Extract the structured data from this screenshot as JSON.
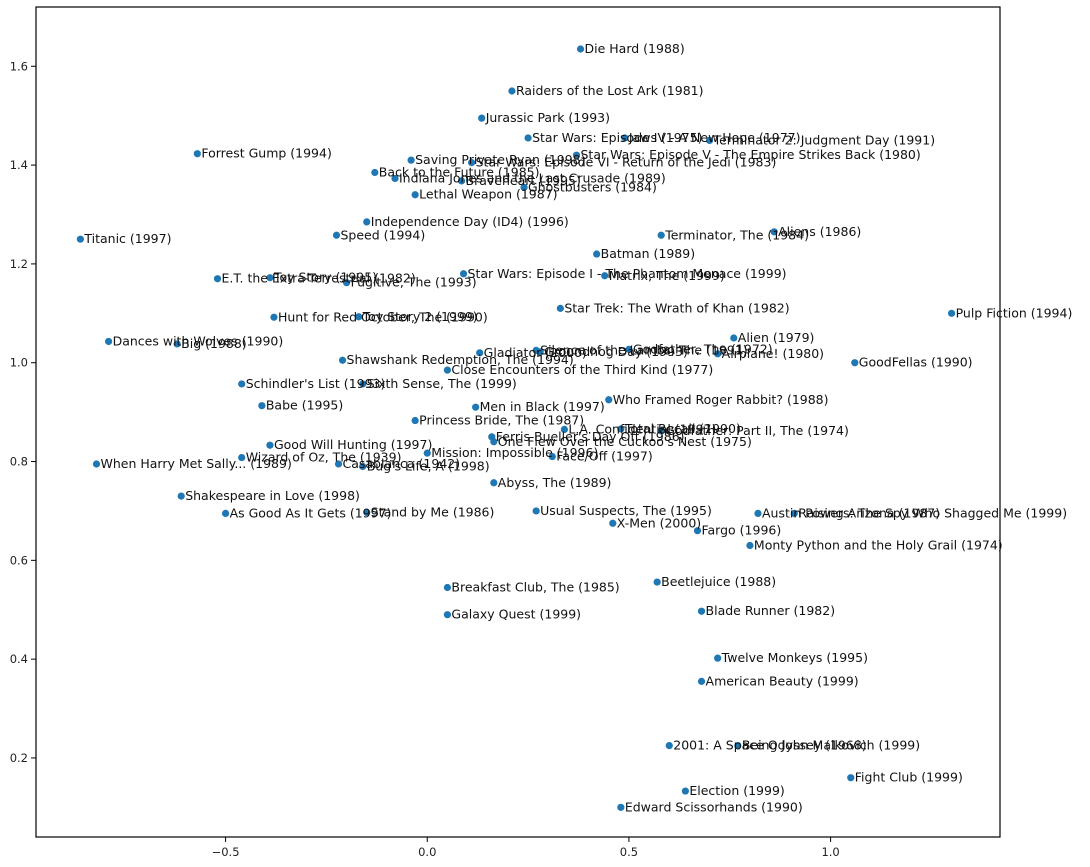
{
  "chart_data": {
    "type": "scatter",
    "title": "",
    "xlabel": "",
    "ylabel": "",
    "xlim": [
      -0.97,
      1.42
    ],
    "ylim": [
      0.04,
      1.72
    ],
    "xticks": [
      -0.5,
      0.0,
      0.5,
      1.0
    ],
    "xtick_labels": [
      "−0.5",
      "0.0",
      "0.5",
      "1.0"
    ],
    "yticks": [
      0.2,
      0.4,
      0.6,
      0.8,
      1.0,
      1.2,
      1.4,
      1.6
    ],
    "ytick_labels": [
      "0.2",
      "0.4",
      "0.6",
      "0.8",
      "1.0",
      "1.2",
      "1.4",
      "1.6"
    ],
    "grid": false,
    "marker_color": "#1f77b4",
    "points": [
      {
        "label": "Die Hard (1988)",
        "x": 0.38,
        "y": 1.635
      },
      {
        "label": "Raiders of the Lost Ark (1981)",
        "x": 0.21,
        "y": 1.55
      },
      {
        "label": "Jurassic Park (1993)",
        "x": 0.135,
        "y": 1.495
      },
      {
        "label": "Star Wars: Episode IV - A New Hope (1977)",
        "x": 0.25,
        "y": 1.455
      },
      {
        "label": "Jaws (1975)",
        "x": 0.49,
        "y": 1.455
      },
      {
        "label": "Terminator 2: Judgment Day (1991)",
        "x": 0.7,
        "y": 1.45
      },
      {
        "label": "Star Wars: Episode V - The Empire Strikes Back (1980)",
        "x": 0.37,
        "y": 1.42
      },
      {
        "label": "Forrest Gump (1994)",
        "x": -0.57,
        "y": 1.423
      },
      {
        "label": "Saving Private Ryan (1998)",
        "x": -0.04,
        "y": 1.41
      },
      {
        "label": "Star Wars: Episode VI - Return of the Jedi (1983)",
        "x": 0.11,
        "y": 1.405
      },
      {
        "label": "Back to the Future (1985)",
        "x": -0.13,
        "y": 1.385
      },
      {
        "label": "Indiana Jones and the Last Crusade (1989)",
        "x": -0.08,
        "y": 1.373
      },
      {
        "label": "Braveheart (1995)",
        "x": 0.085,
        "y": 1.368
      },
      {
        "label": "Ghostbusters (1984)",
        "x": 0.24,
        "y": 1.355
      },
      {
        "label": "Lethal Weapon (1987)",
        "x": -0.03,
        "y": 1.34
      },
      {
        "label": "Independence Day (ID4) (1996)",
        "x": -0.15,
        "y": 1.285
      },
      {
        "label": "Speed (1994)",
        "x": -0.225,
        "y": 1.258
      },
      {
        "label": "Titanic (1997)",
        "x": -0.86,
        "y": 1.25
      },
      {
        "label": "Terminator, The (1984)",
        "x": 0.58,
        "y": 1.258
      },
      {
        "label": "Aliens (1986)",
        "x": 0.86,
        "y": 1.265
      },
      {
        "label": "Batman (1989)",
        "x": 0.42,
        "y": 1.22
      },
      {
        "label": "E.T. the Extra-Terrestrial (1982)",
        "x": -0.52,
        "y": 1.17
      },
      {
        "label": "Fugitive, The (1993)",
        "x": -0.2,
        "y": 1.162
      },
      {
        "label": "Toy Story (1995)",
        "x": -0.39,
        "y": 1.172
      },
      {
        "label": "Star Wars: Episode I - The Phantom Menace (1999)",
        "x": 0.09,
        "y": 1.18
      },
      {
        "label": "Matrix, The (1999)",
        "x": 0.44,
        "y": 1.176
      },
      {
        "label": "Star Trek: The Wrath of Khan (1982)",
        "x": 0.33,
        "y": 1.11
      },
      {
        "label": "Hunt for Red October, The (1990)",
        "x": -0.38,
        "y": 1.092
      },
      {
        "label": "Toy Story 2 (1999)",
        "x": -0.17,
        "y": 1.093
      },
      {
        "label": "Pulp Fiction (1994)",
        "x": 1.3,
        "y": 1.1
      },
      {
        "label": "Alien (1979)",
        "x": 0.76,
        "y": 1.05
      },
      {
        "label": "Dances with Wolves (1990)",
        "x": -0.79,
        "y": 1.043
      },
      {
        "label": "Big (1988)",
        "x": -0.62,
        "y": 1.038
      },
      {
        "label": "Gladiator (2000)",
        "x": 0.13,
        "y": 1.02
      },
      {
        "label": "Silence of the Lambs, The (1991)",
        "x": 0.27,
        "y": 1.025
      },
      {
        "label": "Groundhog Day (1993)",
        "x": 0.28,
        "y": 1.022
      },
      {
        "label": "Godfather, The (1972)",
        "x": 0.5,
        "y": 1.027
      },
      {
        "label": "Airplane! (1980)",
        "x": 0.72,
        "y": 1.018
      },
      {
        "label": "Shawshank Redemption, The (1994)",
        "x": -0.21,
        "y": 1.005
      },
      {
        "label": "GoodFellas (1990)",
        "x": 1.06,
        "y": 1.0
      },
      {
        "label": "Close Encounters of the Third Kind (1977)",
        "x": 0.05,
        "y": 0.985
      },
      {
        "label": "Schindler's List (1993)",
        "x": -0.46,
        "y": 0.957
      },
      {
        "label": "Sixth Sense, The (1999)",
        "x": -0.16,
        "y": 0.957
      },
      {
        "label": "Who Framed Roger Rabbit? (1988)",
        "x": 0.45,
        "y": 0.925
      },
      {
        "label": "Babe (1995)",
        "x": -0.41,
        "y": 0.913
      },
      {
        "label": "Men in Black (1997)",
        "x": 0.12,
        "y": 0.91
      },
      {
        "label": "Princess Bride, The (1987)",
        "x": -0.03,
        "y": 0.883
      },
      {
        "label": "L.A. Confidential (1997)",
        "x": 0.34,
        "y": 0.865
      },
      {
        "label": "Total Recall (1990)",
        "x": 0.48,
        "y": 0.866
      },
      {
        "label": "Godfather: Part II, The (1974)",
        "x": 0.58,
        "y": 0.862
      },
      {
        "label": "Ferris Bueller's Day Off (1986)",
        "x": 0.16,
        "y": 0.85
      },
      {
        "label": "One Flew Over the Cuckoo's Nest (1975)",
        "x": 0.165,
        "y": 0.84
      },
      {
        "label": "Good Will Hunting (1997)",
        "x": -0.39,
        "y": 0.833
      },
      {
        "label": "Mission: Impossible (1996)",
        "x": 0.0,
        "y": 0.817
      },
      {
        "label": "Face/Off (1997)",
        "x": 0.31,
        "y": 0.81
      },
      {
        "label": "Wizard of Oz, The (1939)",
        "x": -0.46,
        "y": 0.808
      },
      {
        "label": "When Harry Met Sally... (1989)",
        "x": -0.82,
        "y": 0.795
      },
      {
        "label": "Casablanca (1942)",
        "x": -0.22,
        "y": 0.795
      },
      {
        "label": "Bug's Life, A (1998)",
        "x": -0.16,
        "y": 0.79
      },
      {
        "label": "Abyss, The (1989)",
        "x": 0.165,
        "y": 0.757
      },
      {
        "label": "Shakespeare in Love (1998)",
        "x": -0.61,
        "y": 0.73
      },
      {
        "label": "As Good As It Gets (1997)",
        "x": -0.5,
        "y": 0.695
      },
      {
        "label": "Stand by Me (1986)",
        "x": -0.15,
        "y": 0.697
      },
      {
        "label": "Usual Suspects, The (1995)",
        "x": 0.27,
        "y": 0.7
      },
      {
        "label": "Austin Powers: The Spy Who Shagged Me (1999)",
        "x": 0.82,
        "y": 0.695
      },
      {
        "label": "Raising Arizona (1987)",
        "x": 0.91,
        "y": 0.695
      },
      {
        "label": "X-Men (2000)",
        "x": 0.46,
        "y": 0.675
      },
      {
        "label": "Fargo (1996)",
        "x": 0.67,
        "y": 0.66
      },
      {
        "label": "Monty Python and the Holy Grail (1974)",
        "x": 0.8,
        "y": 0.63
      },
      {
        "label": "Beetlejuice (1988)",
        "x": 0.57,
        "y": 0.556
      },
      {
        "label": "Breakfast Club, The (1985)",
        "x": 0.05,
        "y": 0.545
      },
      {
        "label": "Blade Runner (1982)",
        "x": 0.68,
        "y": 0.497
      },
      {
        "label": "Galaxy Quest (1999)",
        "x": 0.05,
        "y": 0.49
      },
      {
        "label": "Twelve Monkeys (1995)",
        "x": 0.72,
        "y": 0.402
      },
      {
        "label": "American Beauty (1999)",
        "x": 0.68,
        "y": 0.355
      },
      {
        "label": "2001: A Space Odyssey (1968)",
        "x": 0.6,
        "y": 0.225
      },
      {
        "label": "Being John Malkovich (1999)",
        "x": 0.77,
        "y": 0.225
      },
      {
        "label": "Fight Club (1999)",
        "x": 1.05,
        "y": 0.16
      },
      {
        "label": "Election (1999)",
        "x": 0.64,
        "y": 0.133
      },
      {
        "label": "Edward Scissorhands (1990)",
        "x": 0.48,
        "y": 0.1
      }
    ]
  }
}
